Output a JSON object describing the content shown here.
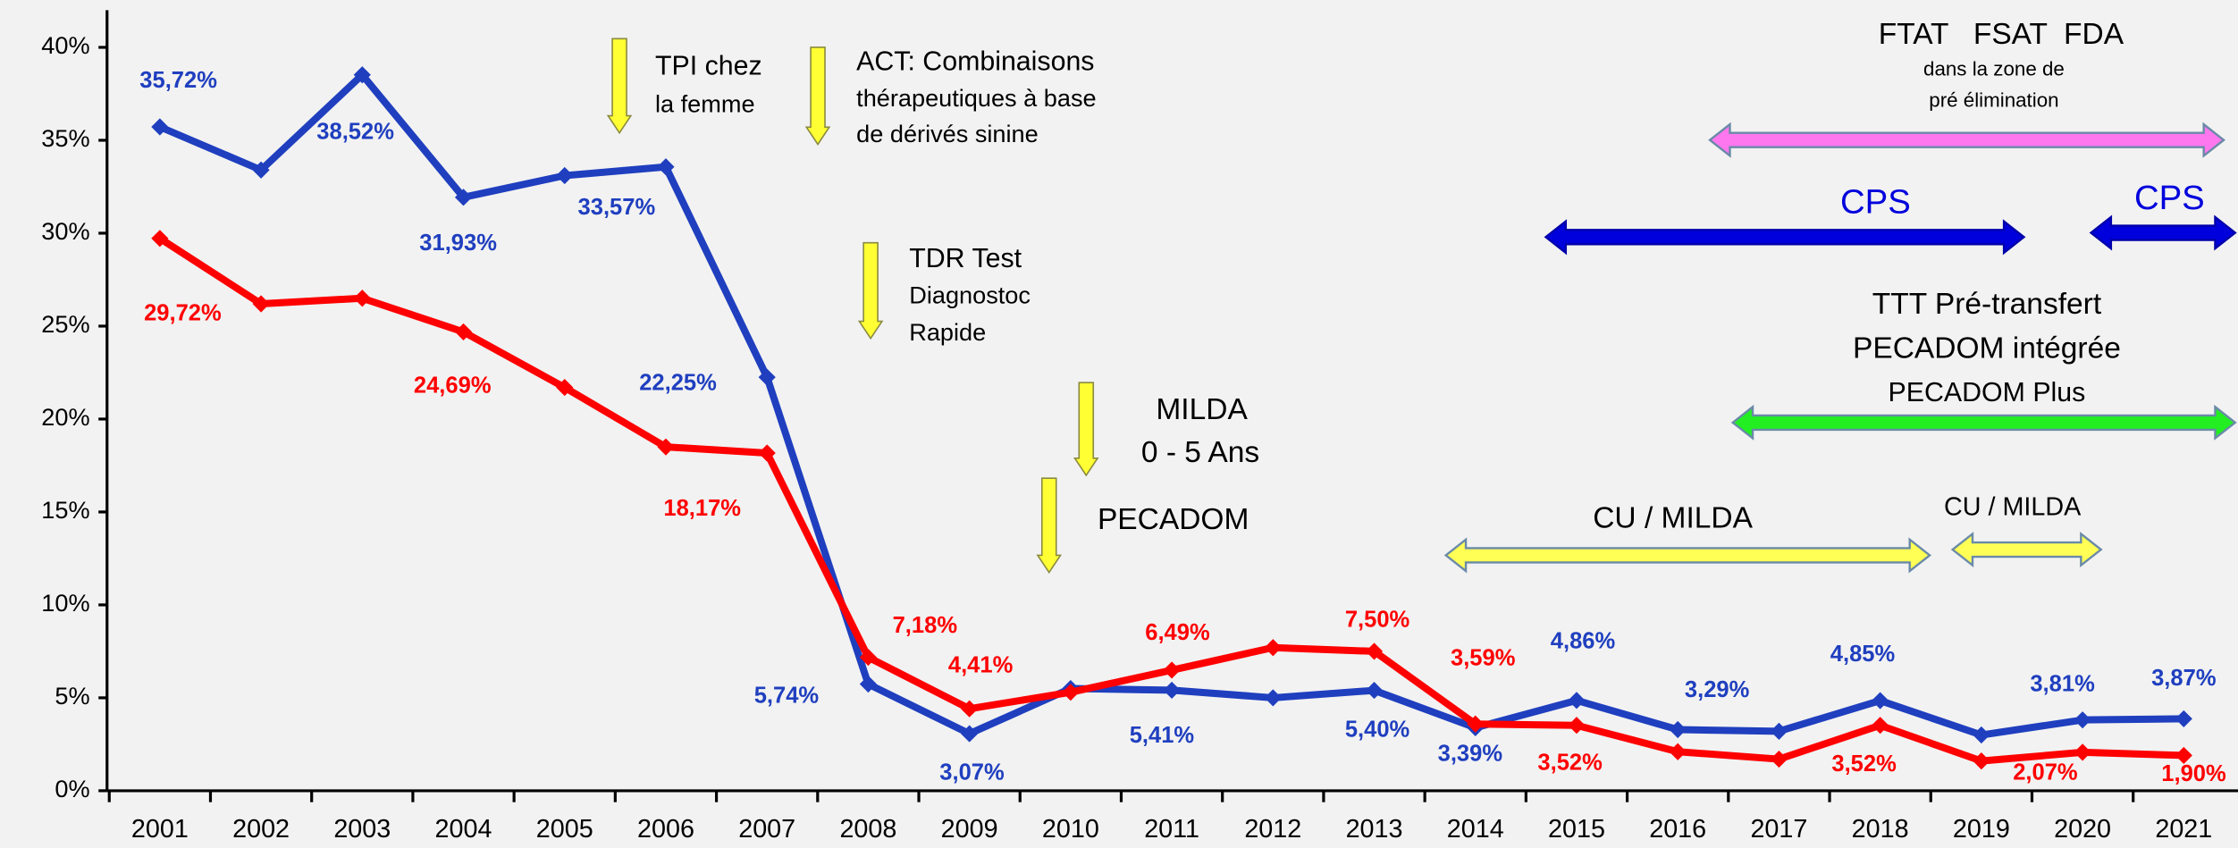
{
  "chart_data": {
    "type": "line",
    "categories": [
      "2001",
      "2002",
      "2003",
      "2004",
      "2005",
      "2006",
      "2007",
      "2008",
      "2009",
      "2010",
      "2011",
      "2012",
      "2013",
      "2014",
      "2015",
      "2016",
      "2017",
      "2018",
      "2019",
      "2020",
      "2021"
    ],
    "ylim": [
      0,
      42
    ],
    "yticks": [
      {
        "value": 0,
        "label": "0%"
      },
      {
        "value": 5,
        "label": "5%"
      },
      {
        "value": 10,
        "label": "10%"
      },
      {
        "value": 15,
        "label": "15%"
      },
      {
        "value": 20,
        "label": "20%"
      },
      {
        "value": 25,
        "label": "25%"
      },
      {
        "value": 30,
        "label": "30%"
      },
      {
        "value": 35,
        "label": "35%"
      },
      {
        "value": 40,
        "label": "40%"
      }
    ],
    "series": [
      {
        "color": "#1f3fbf",
        "values": [
          35.72,
          33.4,
          38.52,
          31.93,
          33.1,
          33.57,
          22.25,
          5.74,
          3.07,
          5.5,
          5.41,
          5.0,
          5.4,
          3.39,
          4.86,
          3.29,
          3.2,
          4.85,
          3.0,
          3.81,
          3.87
        ],
        "value_labels": [
          "35,72%",
          null,
          "38,52%",
          "31,93%",
          null,
          "33,57%",
          "22,25%",
          "5,74%",
          "3,07%",
          null,
          "5,41%",
          null,
          "5,40%",
          "3,39%",
          "4,86%",
          "3,29%",
          null,
          "4,85%",
          null,
          "3,81%",
          "3,87%"
        ]
      },
      {
        "color": "#ff0000",
        "values": [
          29.72,
          26.2,
          26.5,
          24.69,
          21.7,
          18.5,
          18.17,
          7.18,
          4.41,
          5.3,
          6.49,
          7.7,
          7.5,
          3.59,
          3.52,
          2.1,
          1.7,
          3.52,
          1.6,
          2.07,
          1.9
        ],
        "value_labels": [
          "29,72%",
          null,
          null,
          "24,69%",
          null,
          null,
          "18,17%",
          "7,18%",
          "4,41%",
          null,
          "6,49%",
          null,
          "7,50%",
          "3,59%",
          "3,52%",
          null,
          null,
          "3,52%",
          null,
          "2,07%",
          "1,90%"
        ]
      }
    ],
    "annotations": [
      "TPI chez",
      "la femme",
      "ACT: Combinaisons",
      "thérapeutiques à base",
      "de dérivés sinine",
      "TDR Test",
      "Diagnostoc",
      "Rapide",
      "MILDA",
      "0 - 5 Ans",
      "PECADOM",
      "FTAT   FSAT  FDA",
      "dans la zone de",
      "pré élimination",
      "CPS",
      "CPS",
      "TTT Pré-transfert",
      "PECADOM intégrée",
      "PECADOM Plus",
      "CU / MILDA",
      "CU / MILDA"
    ]
  }
}
